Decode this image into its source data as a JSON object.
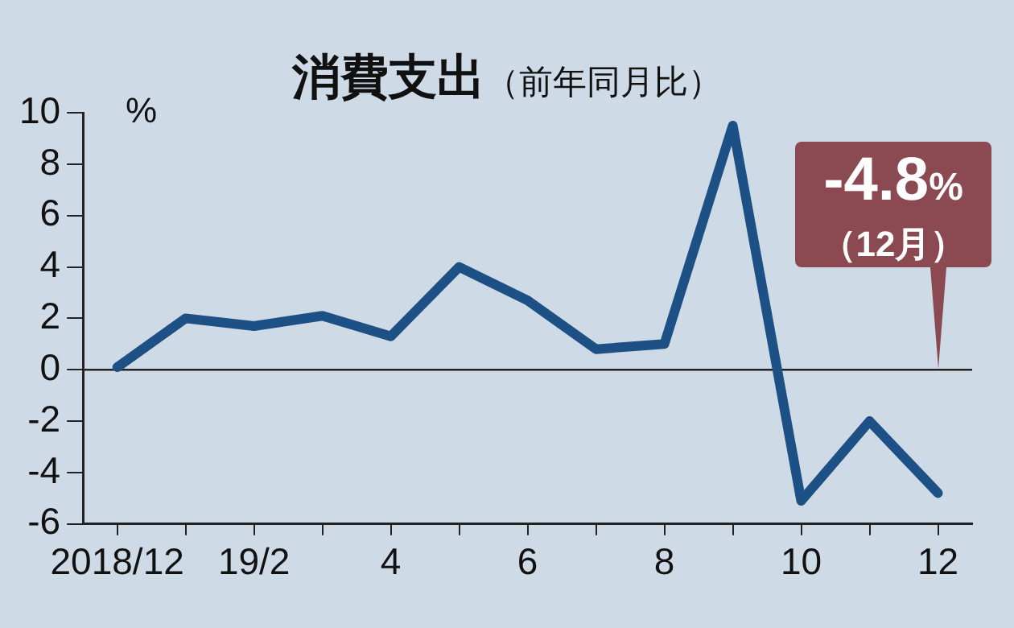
{
  "chart_data": {
    "type": "line",
    "title": "消費支出",
    "subtitle": "（前年同月比）",
    "ylabel": "%",
    "categories": [
      "2018/12",
      null,
      "19/2",
      null,
      "4",
      null,
      "6",
      null,
      "8",
      null,
      "10",
      null,
      "12"
    ],
    "series": [
      {
        "color": "#1d5185",
        "values": [
          0.1,
          2.0,
          1.7,
          2.1,
          1.3,
          4.0,
          2.7,
          0.8,
          1.0,
          9.5,
          -5.1,
          -2.0,
          -4.8
        ]
      }
    ],
    "ylim": [
      -6,
      10
    ],
    "yticks": [
      -6,
      -4,
      -2,
      0,
      2,
      4,
      6,
      8,
      10
    ],
    "ref_lines": [
      {
        "axis": "y",
        "value": 0,
        "color": "#222222"
      }
    ],
    "annotations": [
      {
        "text": "-4.8%",
        "x": "12",
        "y": 0
      },
      "（12月）"
    ],
    "grid": false,
    "legend": false,
    "marker": "none",
    "line_style": "solid"
  }
}
